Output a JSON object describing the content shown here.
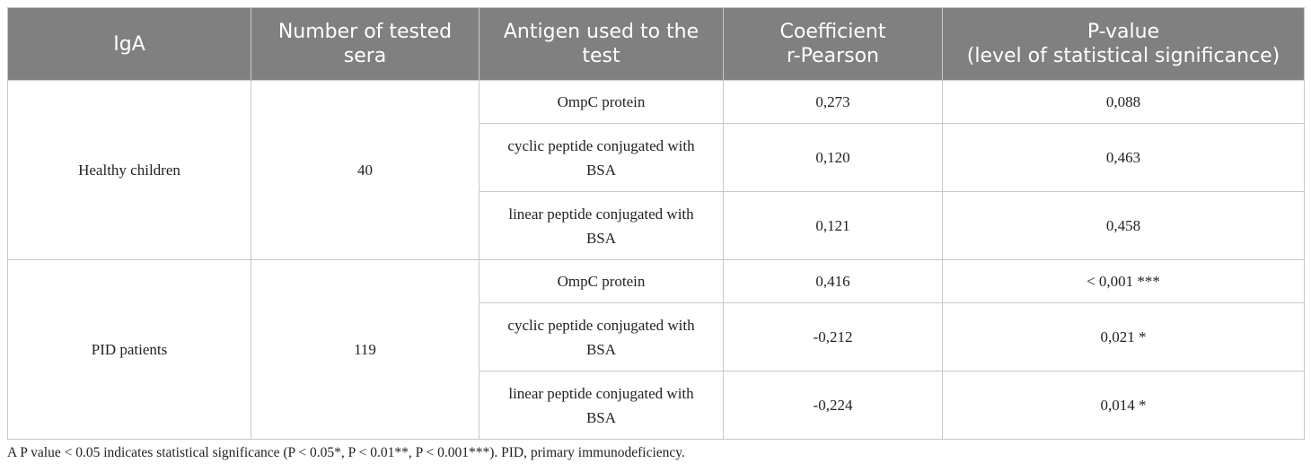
{
  "table": {
    "header": [
      [
        "IgA"
      ],
      [
        "Number of tested",
        "sera"
      ],
      [
        "Antigen used to the",
        "test"
      ],
      [
        "Coefficient",
        "r-Pearson"
      ],
      [
        "P-value",
        "(level of statistical significance)"
      ]
    ],
    "groups": [
      {
        "label": "Healthy children",
        "count": "40",
        "rows": [
          [
            "OmpC protein",
            "0,273",
            "0,088"
          ],
          [
            "cyclic peptide conjugated with BSA",
            "0,120",
            "0,463"
          ],
          [
            "linear peptide conjugated with BSA",
            "0,121",
            "0,458"
          ]
        ]
      },
      {
        "label": "PID patients",
        "count": "119",
        "rows": [
          [
            "OmpC protein",
            "0,416",
            "< 0,001 ***"
          ],
          [
            "cyclic peptide conjugated with BSA",
            "-0,212",
            "0,021 *"
          ],
          [
            "linear peptide conjugated with BSA",
            "-0,224",
            "0,014 *"
          ]
        ]
      }
    ],
    "footnote": "A P value < 0.05 indicates statistical significance (P < 0.05*, P < 0.01**, P < 0.001***). PID, primary immunodeficiency."
  }
}
